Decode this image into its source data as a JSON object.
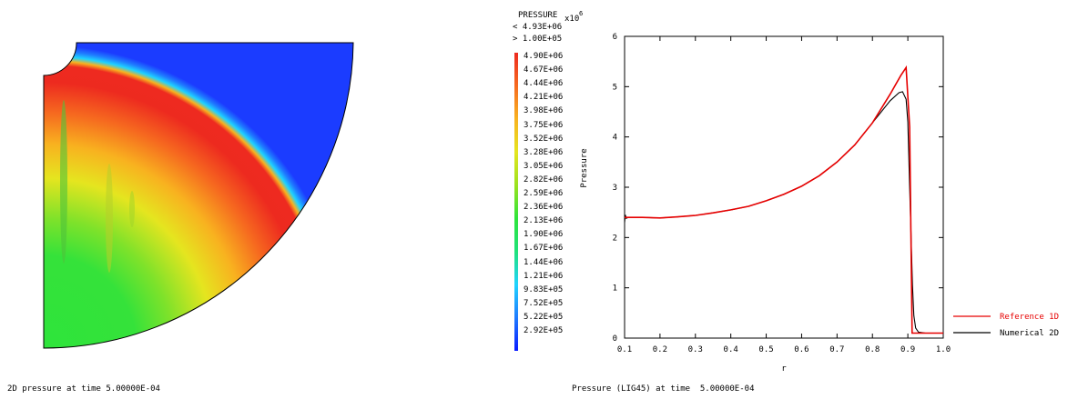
{
  "left_panel": {
    "caption": "2D pressure at time 5.00000E-04",
    "colormap": [
      "#0b1cff",
      "#1f7bff",
      "#1fd3ff",
      "#1fe27a",
      "#2ee43b",
      "#9be21f",
      "#e5e51f",
      "#f8b21f",
      "#f66a1f",
      "#ed2a1f"
    ]
  },
  "colorbar": {
    "title": "PRESSURE",
    "upper_bound": "< 4.93E+06",
    "lower_bound": "> 1.00E+05",
    "ticks": [
      "4.90E+06",
      "4.67E+06",
      "4.44E+06",
      "4.21E+06",
      "3.98E+06",
      "3.75E+06",
      "3.52E+06",
      "3.28E+06",
      "3.05E+06",
      "2.82E+06",
      "2.59E+06",
      "2.36E+06",
      "2.13E+06",
      "1.90E+06",
      "1.67E+06",
      "1.44E+06",
      "1.21E+06",
      "9.83E+05",
      "7.52E+05",
      "5.22E+05",
      "2.92E+05"
    ],
    "top_color": "#e8201f",
    "bottom_color": "#1010ff"
  },
  "right_panel": {
    "caption": "Pressure (LIG45) at time  5.00000E-04"
  },
  "chart_data": {
    "type": "line",
    "title": "",
    "xlabel": "r",
    "ylabel": "Pressure",
    "y_multiplier": "x10",
    "y_multiplier_exp": "6",
    "xlim": [
      0.1,
      1.0
    ],
    "ylim": [
      0,
      6
    ],
    "xticks": [
      "0.1",
      "0.2",
      "0.3",
      "0.4",
      "0.5",
      "0.6",
      "0.7",
      "0.8",
      "0.9",
      "1.0"
    ],
    "yticks": [
      "0",
      "1",
      "2",
      "3",
      "4",
      "5",
      "6"
    ],
    "grid": false,
    "legend_position": "right",
    "series": [
      {
        "name": "Reference 1D",
        "color": "#e60000",
        "x": [
          0.1,
          0.15,
          0.2,
          0.25,
          0.3,
          0.35,
          0.4,
          0.45,
          0.5,
          0.55,
          0.6,
          0.65,
          0.7,
          0.75,
          0.8,
          0.85,
          0.88,
          0.895,
          0.905,
          0.912,
          0.92,
          0.95,
          1.0
        ],
        "y": [
          2.4,
          2.4,
          2.39,
          2.41,
          2.44,
          2.49,
          2.55,
          2.62,
          2.73,
          2.86,
          3.02,
          3.23,
          3.5,
          3.84,
          4.28,
          4.85,
          5.22,
          5.38,
          4.2,
          0.1,
          0.1,
          0.1,
          0.1
        ]
      },
      {
        "name": "Numerical 2D",
        "color": "#000000",
        "x": [
          0.1,
          0.102,
          0.105,
          0.11,
          0.15,
          0.2,
          0.25,
          0.3,
          0.35,
          0.4,
          0.45,
          0.5,
          0.55,
          0.6,
          0.65,
          0.7,
          0.75,
          0.8,
          0.85,
          0.875,
          0.885,
          0.895,
          0.9,
          0.905,
          0.91,
          0.913,
          0.917,
          0.922,
          0.93,
          0.95,
          1.0
        ],
        "y": [
          2.3,
          2.45,
          2.38,
          2.4,
          2.4,
          2.39,
          2.41,
          2.44,
          2.49,
          2.55,
          2.62,
          2.73,
          2.86,
          3.02,
          3.23,
          3.5,
          3.84,
          4.28,
          4.72,
          4.88,
          4.9,
          4.75,
          4.3,
          3.0,
          1.8,
          1.05,
          0.45,
          0.2,
          0.12,
          0.1,
          0.1
        ]
      }
    ]
  }
}
